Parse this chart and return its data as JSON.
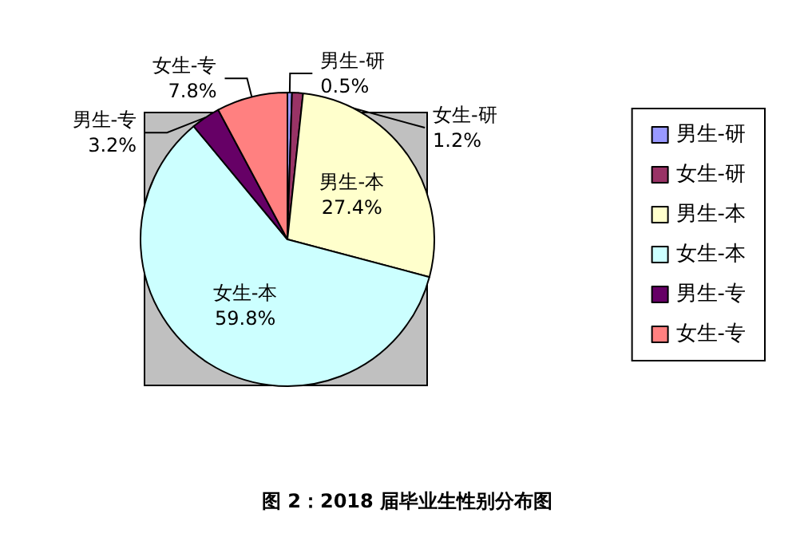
{
  "chart_data": {
    "type": "pie",
    "title": "图 2：2018 届毕业生性别分布图",
    "categories": [
      "男生-研",
      "女生-研",
      "男生-本",
      "女生-本",
      "男生-专",
      "女生-专"
    ],
    "values": [
      0.5,
      1.2,
      27.4,
      59.8,
      3.2,
      7.8
    ],
    "colors": [
      "#9999ff",
      "#993366",
      "#ffffcc",
      "#ccffff",
      "#660066",
      "#ff8080"
    ],
    "value_labels": [
      "0.5%",
      "1.2%",
      "27.4%",
      "59.8%",
      "3.2%",
      "7.8%"
    ],
    "legend": "right"
  }
}
